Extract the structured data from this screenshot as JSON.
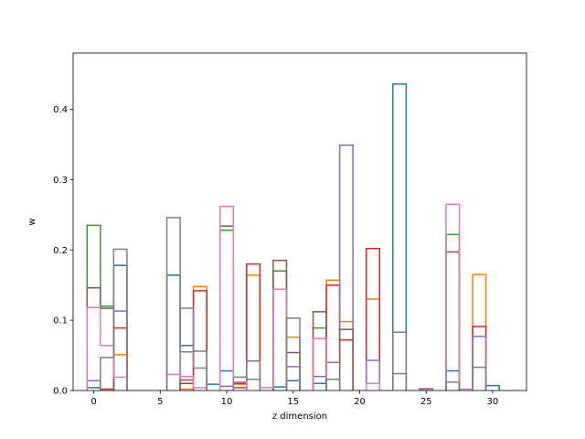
{
  "chart_data": {
    "type": "histogram-step",
    "xlabel": "z dimension",
    "ylabel": "w",
    "xlim": [
      -1.55,
      32.55
    ],
    "ylim": [
      0,
      0.48
    ],
    "xticks": [
      0,
      5,
      10,
      15,
      20,
      25,
      30
    ],
    "yticks": [
      0.0,
      0.1,
      0.2,
      0.3,
      0.4
    ],
    "bin_width": 1,
    "series": [
      {
        "color": "#1f77b4",
        "bins": [
          [
            0,
            0.004
          ],
          [
            2,
            0.178
          ],
          [
            6,
            0.164
          ],
          [
            7,
            0.064
          ],
          [
            9,
            0.009
          ],
          [
            10,
            0.028
          ],
          [
            14,
            0.005
          ],
          [
            15,
            0.014
          ],
          [
            17,
            0.01
          ],
          [
            23,
            0.436
          ],
          [
            27,
            0.028
          ],
          [
            30,
            0.007
          ]
        ]
      },
      {
        "color": "#ff7f0e",
        "bins": [
          [
            2,
            0.051
          ],
          [
            7,
            0.002
          ],
          [
            8,
            0.148
          ],
          [
            11,
            0.009
          ],
          [
            12,
            0.164
          ],
          [
            15,
            0.076
          ],
          [
            18,
            0.157
          ],
          [
            19,
            0.098
          ],
          [
            21,
            0.13
          ],
          [
            29,
            0.165
          ]
        ]
      },
      {
        "color": "#2ca02c",
        "bins": [
          [
            0,
            0.235
          ],
          [
            1,
            0.12
          ],
          [
            10,
            0.228
          ],
          [
            14,
            0.17
          ],
          [
            17,
            0.089
          ],
          [
            27,
            0.222
          ]
        ]
      },
      {
        "color": "#d62728",
        "bins": [
          [
            1,
            0.002
          ],
          [
            2,
            0.089
          ],
          [
            7,
            0.01
          ],
          [
            8,
            0.142
          ],
          [
            11,
            0.004
          ],
          [
            12,
            0.18
          ],
          [
            18,
            0.15
          ],
          [
            19,
            0.072
          ],
          [
            21,
            0.202
          ],
          [
            29,
            0.091
          ]
        ]
      },
      {
        "color": "#9467bd",
        "bins": [
          [
            0,
            0.014
          ],
          [
            2,
            0.113
          ],
          [
            7,
            0.117
          ],
          [
            8,
            0.032
          ],
          [
            10,
            0.006
          ],
          [
            12,
            0.042
          ],
          [
            15,
            0.034
          ],
          [
            17,
            0.02
          ],
          [
            18,
            0.04
          ],
          [
            19,
            0.349
          ],
          [
            21,
            0.043
          ],
          [
            23,
            0.024
          ],
          [
            29,
            0.077
          ]
        ]
      },
      {
        "color": "#8c564b",
        "bins": [
          [
            0,
            0.146
          ],
          [
            1,
            0.117
          ],
          [
            7,
            0.015
          ],
          [
            10,
            0.234
          ],
          [
            11,
            0.01
          ],
          [
            14,
            0.185
          ],
          [
            15,
            0.054
          ],
          [
            17,
            0.112
          ],
          [
            19,
            0.087
          ],
          [
            27,
            0.197
          ]
        ]
      },
      {
        "color": "#e377c2",
        "bins": [
          [
            0,
            0.118
          ],
          [
            1,
            0.064
          ],
          [
            2,
            0.019
          ],
          [
            6,
            0.023
          ],
          [
            7,
            0.02
          ],
          [
            8,
            0.004
          ],
          [
            10,
            0.262
          ],
          [
            11,
            0.012
          ],
          [
            13,
            0.004
          ],
          [
            14,
            0.144
          ],
          [
            17,
            0.074
          ],
          [
            21,
            0.01
          ],
          [
            25,
            0.003
          ],
          [
            27,
            0.265
          ],
          [
            28,
            0.002
          ]
        ]
      },
      {
        "color": "#7f7f7f",
        "bins": [
          [
            1,
            0.047
          ],
          [
            2,
            0.201
          ],
          [
            6,
            0.246
          ],
          [
            7,
            0.055
          ],
          [
            8,
            0.056
          ],
          [
            11,
            0.019
          ],
          [
            12,
            0.016
          ],
          [
            15,
            0.103
          ],
          [
            18,
            0.016
          ],
          [
            23,
            0.083
          ],
          [
            25,
            0.002
          ],
          [
            27,
            0.012
          ],
          [
            29,
            0.033
          ]
        ]
      }
    ]
  }
}
